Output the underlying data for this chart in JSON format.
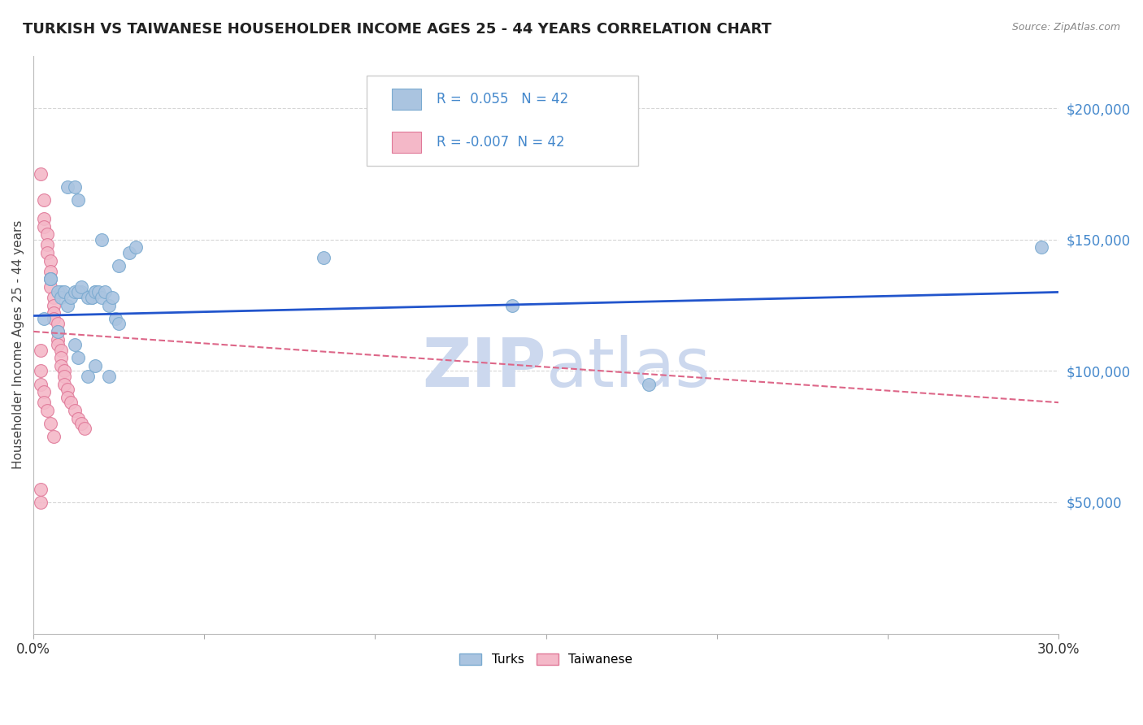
{
  "title": "TURKISH VS TAIWANESE HOUSEHOLDER INCOME AGES 25 - 44 YEARS CORRELATION CHART",
  "source_text": "Source: ZipAtlas.com",
  "ylabel": "Householder Income Ages 25 - 44 years",
  "xmin": 0.0,
  "xmax": 0.3,
  "ymin": 0,
  "ymax": 220000,
  "ytick_labels": [
    "$50,000",
    "$100,000",
    "$150,000",
    "$200,000"
  ],
  "ytick_values": [
    50000,
    100000,
    150000,
    200000
  ],
  "turks_R": "0.055",
  "turks_N": 42,
  "taiwanese_R": "-0.007",
  "taiwanese_N": 42,
  "turks_color": "#aac4e0",
  "turks_edge_color": "#7aaad0",
  "taiwanese_color": "#f4b8c8",
  "taiwanese_edge_color": "#e07898",
  "trend_blue_color": "#2255cc",
  "trend_pink_color": "#dd6688",
  "background_color": "#ffffff",
  "title_color": "#222222",
  "axis_label_color": "#444444",
  "ytick_color": "#4488cc",
  "xtick_color": "#333333",
  "grid_color": "#cccccc",
  "watermark_color": "#ccd8ee",
  "legend_text_color": "#4488cc",
  "legend_border_color": "#cccccc",
  "turks_x": [
    0.005,
    0.008,
    0.01,
    0.012,
    0.013,
    0.014,
    0.017,
    0.018,
    0.02,
    0.025,
    0.028,
    0.03,
    0.003,
    0.005,
    0.007,
    0.008,
    0.009,
    0.01,
    0.011,
    0.012,
    0.013,
    0.014,
    0.016,
    0.017,
    0.018,
    0.019,
    0.02,
    0.021,
    0.022,
    0.023,
    0.024,
    0.025,
    0.007,
    0.012,
    0.013,
    0.016,
    0.018,
    0.022,
    0.085,
    0.14,
    0.18,
    0.295
  ],
  "turks_y": [
    135000,
    130000,
    170000,
    170000,
    165000,
    130000,
    128000,
    130000,
    150000,
    140000,
    145000,
    147000,
    120000,
    135000,
    130000,
    128000,
    130000,
    125000,
    128000,
    130000,
    130000,
    132000,
    128000,
    128000,
    130000,
    130000,
    128000,
    130000,
    125000,
    128000,
    120000,
    118000,
    115000,
    110000,
    105000,
    98000,
    102000,
    98000,
    143000,
    125000,
    95000,
    147000
  ],
  "taiwanese_x": [
    0.002,
    0.003,
    0.003,
    0.003,
    0.004,
    0.004,
    0.004,
    0.005,
    0.005,
    0.005,
    0.005,
    0.006,
    0.006,
    0.006,
    0.006,
    0.007,
    0.007,
    0.007,
    0.007,
    0.008,
    0.008,
    0.008,
    0.009,
    0.009,
    0.009,
    0.01,
    0.01,
    0.011,
    0.012,
    0.013,
    0.014,
    0.015,
    0.002,
    0.002,
    0.002,
    0.003,
    0.003,
    0.004,
    0.005,
    0.006,
    0.002,
    0.002
  ],
  "taiwanese_y": [
    175000,
    165000,
    158000,
    155000,
    152000,
    148000,
    145000,
    142000,
    138000,
    135000,
    132000,
    128000,
    125000,
    122000,
    120000,
    118000,
    115000,
    112000,
    110000,
    108000,
    105000,
    102000,
    100000,
    98000,
    95000,
    93000,
    90000,
    88000,
    85000,
    82000,
    80000,
    78000,
    108000,
    100000,
    95000,
    92000,
    88000,
    85000,
    80000,
    75000,
    55000,
    50000
  ],
  "turks_trend_x": [
    0.0,
    0.3
  ],
  "turks_trend_y": [
    121000,
    130000
  ],
  "taiwanese_trend_x": [
    0.0,
    0.3
  ],
  "taiwanese_trend_y": [
    115000,
    88000
  ],
  "marker_size": 130,
  "figsize": [
    14.06,
    8.92
  ],
  "dpi": 100
}
